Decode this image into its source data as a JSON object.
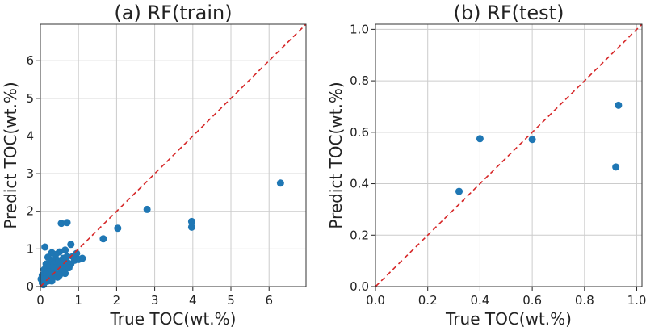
{
  "chart_data": [
    {
      "type": "scatter",
      "title": "(a) RF(train)",
      "xlabel": "True TOC(wt.%)",
      "ylabel": "Predict TOC(wt.%)",
      "xlim": [
        0,
        6.97
      ],
      "ylim": [
        0,
        6.97
      ],
      "xticks": [
        0,
        1,
        2,
        3,
        4,
        5,
        6
      ],
      "yticks": [
        0,
        1,
        2,
        3,
        4,
        5,
        6
      ],
      "grid": true,
      "color": "#1f77b4",
      "diagonal_color": "#d62728",
      "points": [
        [
          6.3,
          2.75
        ],
        [
          3.97,
          1.73
        ],
        [
          3.97,
          1.58
        ],
        [
          2.8,
          2.05
        ],
        [
          2.03,
          1.55
        ],
        [
          1.65,
          1.27
        ],
        [
          0.55,
          1.68
        ],
        [
          0.7,
          1.7
        ],
        [
          0.8,
          1.12
        ],
        [
          0.12,
          1.05
        ],
        [
          0.3,
          0.9
        ],
        [
          0.5,
          0.92
        ],
        [
          0.65,
          0.97
        ],
        [
          0.95,
          0.88
        ],
        [
          1.1,
          0.75
        ],
        [
          1.0,
          0.72
        ],
        [
          0.85,
          0.8
        ],
        [
          0.4,
          0.85
        ],
        [
          0.2,
          0.78
        ],
        [
          0.6,
          0.75
        ],
        [
          0.7,
          0.65
        ],
        [
          0.45,
          0.7
        ],
        [
          0.3,
          0.7
        ],
        [
          0.15,
          0.6
        ],
        [
          0.25,
          0.55
        ],
        [
          0.5,
          0.55
        ],
        [
          0.6,
          0.5
        ],
        [
          0.8,
          0.6
        ],
        [
          0.9,
          0.7
        ],
        [
          0.35,
          0.45
        ],
        [
          0.1,
          0.45
        ],
        [
          0.2,
          0.4
        ],
        [
          0.4,
          0.35
        ],
        [
          0.55,
          0.4
        ],
        [
          0.65,
          0.35
        ],
        [
          0.05,
          0.3
        ],
        [
          0.15,
          0.3
        ],
        [
          0.3,
          0.25
        ],
        [
          0.45,
          0.25
        ],
        [
          0.1,
          0.2
        ],
        [
          0.2,
          0.15
        ],
        [
          0.05,
          0.1
        ],
        [
          0.3,
          0.15
        ],
        [
          0.08,
          0.05
        ],
        [
          0.5,
          0.3
        ],
        [
          0.75,
          0.5
        ],
        [
          0.25,
          0.35
        ],
        [
          0.02,
          0.2
        ],
        [
          0.12,
          0.12
        ],
        [
          0.35,
          0.6
        ],
        [
          0.55,
          0.65
        ],
        [
          0.7,
          0.8
        ],
        [
          0.4,
          0.5
        ]
      ]
    },
    {
      "type": "scatter",
      "title": "(b) RF(test)",
      "xlabel": "True TOC(wt.%)",
      "ylabel": "Predict TOC(wt.%)",
      "xlim": [
        0,
        1.02
      ],
      "ylim": [
        0,
        1.02
      ],
      "xticks": [
        "0.0",
        "0.2",
        "0.4",
        "0.6",
        "0.8",
        "1.0"
      ],
      "yticks": [
        "0.0",
        "0.2",
        "0.4",
        "0.6",
        "0.8",
        "1.0"
      ],
      "grid": true,
      "color": "#1f77b4",
      "diagonal_color": "#d62728",
      "points": [
        [
          0.32,
          0.37
        ],
        [
          0.4,
          0.575
        ],
        [
          0.6,
          0.572
        ],
        [
          0.92,
          0.465
        ],
        [
          0.93,
          0.705
        ]
      ]
    }
  ]
}
